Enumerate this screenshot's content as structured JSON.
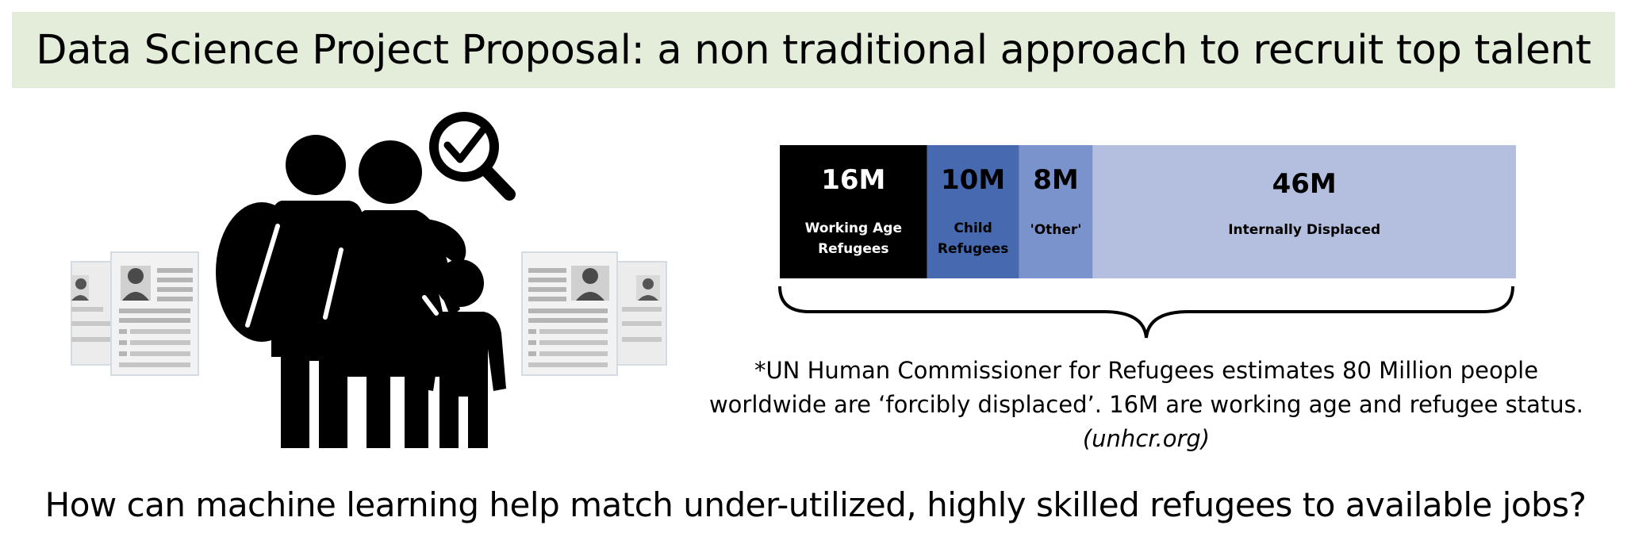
{
  "title": "Data Science Project Proposal: a non traditional approach to recruit top talent",
  "chart_data": {
    "type": "bar",
    "orientation": "horizontal-stacked",
    "total_label": "",
    "segments": [
      {
        "value_label": "16M",
        "value": 16,
        "label": "Working Age Refugees",
        "color": "#000000",
        "text_color": "#ffffff"
      },
      {
        "value_label": "10M",
        "value": 10,
        "label": "Child Refugees",
        "color": "#4769b0",
        "text_color": "#000000"
      },
      {
        "value_label": "8M",
        "value": 8,
        "label": "'Other'",
        "color": "#7b93cc",
        "text_color": "#000000"
      },
      {
        "value_label": "46M",
        "value": 46,
        "label": "Internally Displaced",
        "color": "#b4bfdf",
        "text_color": "#000000"
      }
    ]
  },
  "footnote": {
    "line1": "*UN Human Commissioner for Refugees estimates 80 Million people",
    "line2": "worldwide are ‘forcibly displaced’.  16M are working age and refugee status.",
    "source": "(unhcr.org)"
  },
  "question": "How can machine learning help match under-utilized, highly skilled refugees to available jobs?",
  "illustration": {
    "icons": [
      "family-icon",
      "magnifier-check-icon",
      "resume-icon"
    ]
  }
}
